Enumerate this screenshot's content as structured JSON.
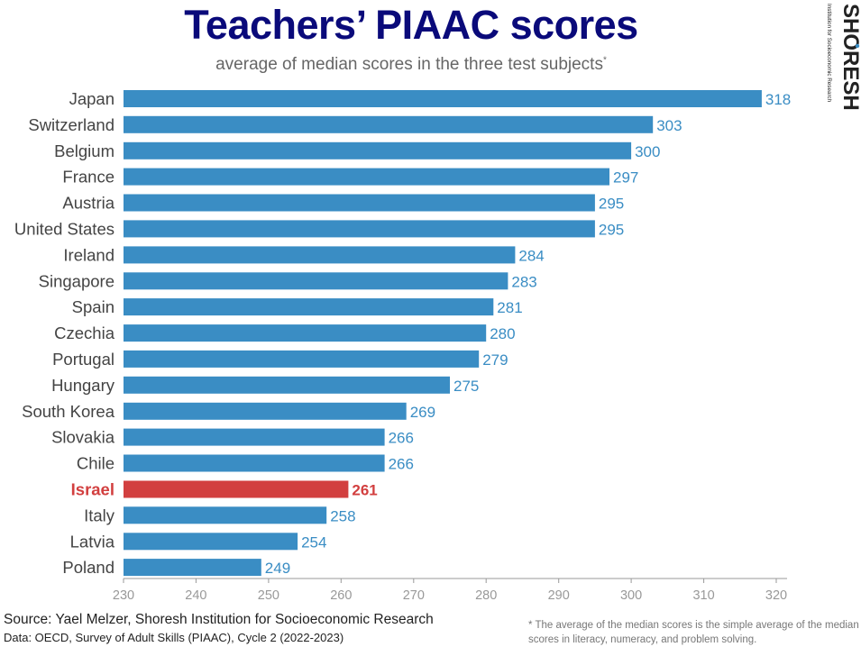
{
  "chart_data": {
    "type": "bar",
    "orientation": "horizontal",
    "title": "Teachers’ PIAAC scores",
    "subtitle": "average of median scores in the three test subjects",
    "subtitle_mark": "*",
    "categories": [
      "Japan",
      "Switzerland",
      "Belgium",
      "France",
      "Austria",
      "United States",
      "Ireland",
      "Singapore",
      "Spain",
      "Czechia",
      "Portugal",
      "Hungary",
      "South Korea",
      "Slovakia",
      "Chile",
      "Israel",
      "Italy",
      "Latvia",
      "Poland"
    ],
    "values": [
      318,
      303,
      300,
      297,
      295,
      295,
      284,
      283,
      281,
      280,
      279,
      275,
      269,
      266,
      266,
      261,
      258,
      254,
      249
    ],
    "highlight": "Israel",
    "xlim": [
      230,
      320
    ],
    "xticks": [
      230,
      240,
      250,
      260,
      270,
      280,
      290,
      300,
      310,
      320
    ],
    "grid": false,
    "colors": {
      "bar": "#3a8dc4",
      "highlight": "#d23f3f",
      "label": "#3a8dc4",
      "axis": "#999999",
      "tick_label": "#999999"
    }
  },
  "logo": {
    "name": "SHORESH",
    "tagline": "Institution for Socioeconomic Research"
  },
  "footer": {
    "source": "Source: Yael Melzer, Shoresh Institution for Socioeconomic Research",
    "data": "Data: OECD, Survey of Adult Skills (PIAAC), Cycle 2 (2022-2023)",
    "footnote": "* The average of the median scores is the simple average of the median scores in literacy, numeracy, and problem solving."
  }
}
